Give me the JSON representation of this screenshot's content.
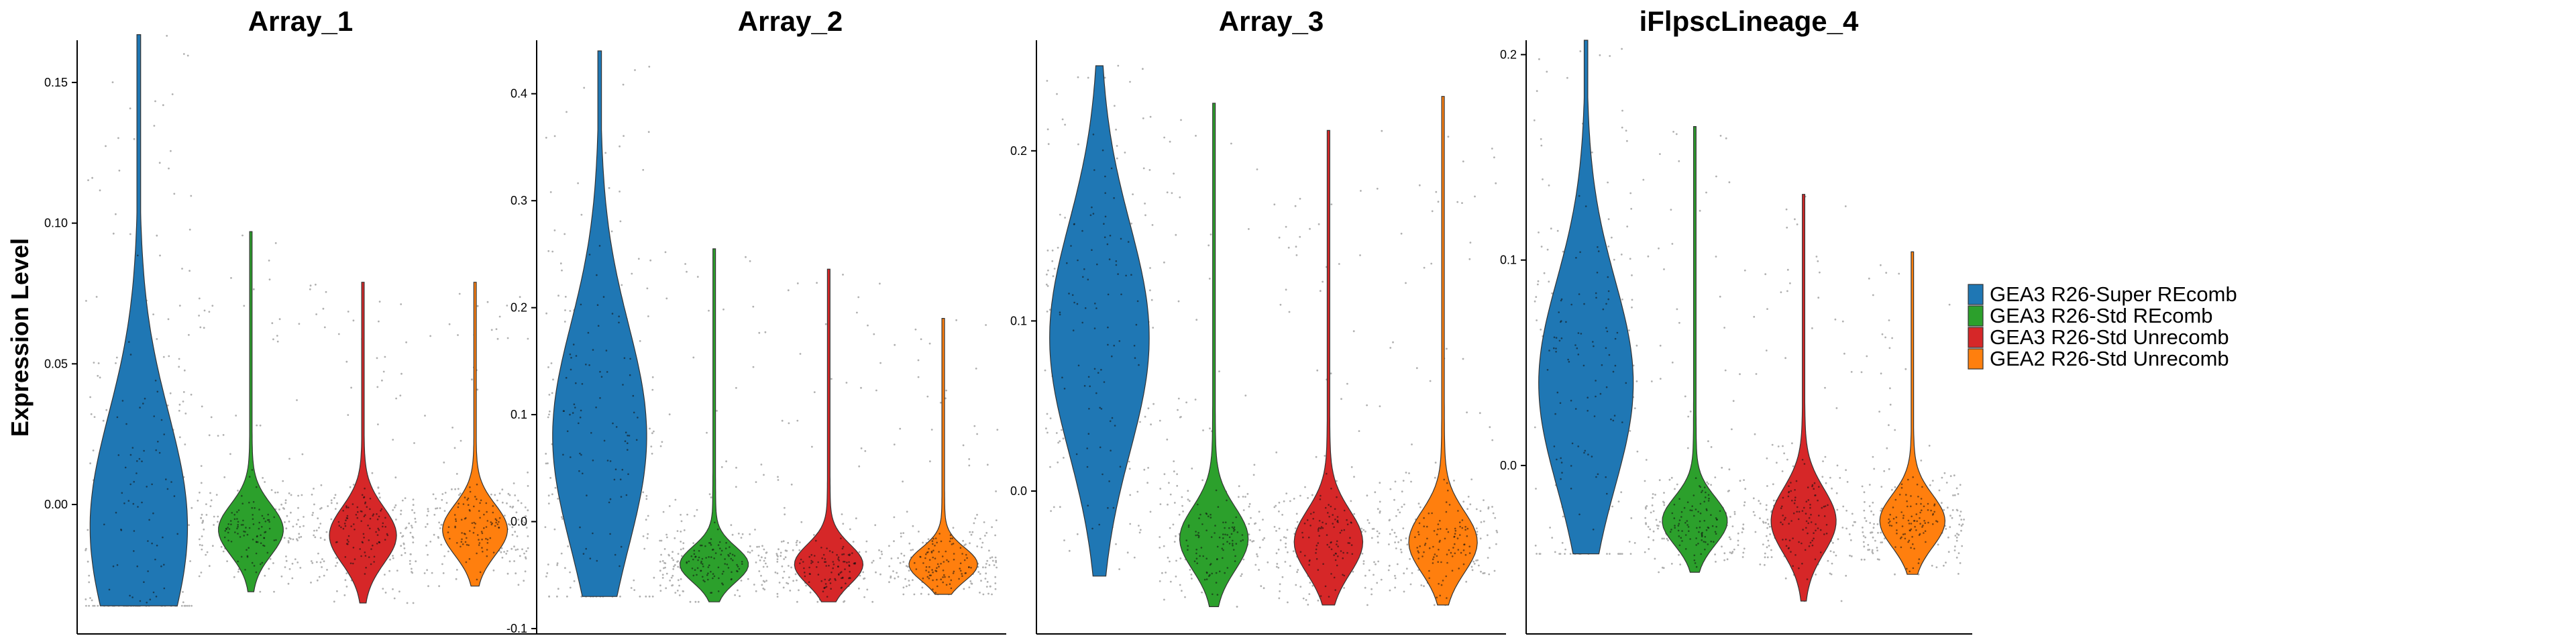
{
  "chart_data": [
    {
      "type": "violin",
      "title": "Array_1",
      "ylabel": "Expression Level",
      "ylim": [
        -0.046,
        0.165
      ],
      "yticks": [
        0.0,
        0.05,
        0.1,
        0.15
      ],
      "ytick_labels": [
        "0.00",
        "0.05",
        "0.10",
        "0.15"
      ],
      "series": [
        {
          "name": "GEA3 R26-Super REcomb",
          "y_min": -0.036,
          "y_max": 0.167,
          "median": -0.008,
          "bulk_low": -0.03,
          "bulk_high": 0.09,
          "peak_width": 0.9,
          "n_points": 240
        },
        {
          "name": "GEA3 R26-Std REcomb",
          "y_min": -0.031,
          "y_max": 0.097,
          "median": -0.009,
          "bulk_low": -0.024,
          "bulk_high": 0.003,
          "peak_width": 0.6,
          "n_points": 200
        },
        {
          "name": "GEA3 R26-Std Unrecomb",
          "y_min": -0.035,
          "y_max": 0.079,
          "median": -0.011,
          "bulk_low": -0.028,
          "bulk_high": 0.002,
          "peak_width": 0.62,
          "n_points": 200
        },
        {
          "name": "GEA2 R26-Std Unrecomb",
          "y_min": -0.029,
          "y_max": 0.079,
          "median": -0.009,
          "bulk_low": -0.024,
          "bulk_high": 0.003,
          "peak_width": 0.6,
          "n_points": 200
        }
      ]
    },
    {
      "type": "violin",
      "title": "Array_2",
      "ylim": [
        -0.105,
        0.45
      ],
      "yticks": [
        -0.1,
        0.0,
        0.1,
        0.2,
        0.3,
        0.4
      ],
      "ytick_labels": [
        "-0.1",
        "0.0",
        "0.1",
        "0.2",
        "0.3",
        "0.4"
      ],
      "series": [
        {
          "name": "GEA3 R26-Super REcomb",
          "y_min": -0.07,
          "y_max": 0.44,
          "median": 0.08,
          "bulk_low": -0.06,
          "bulk_high": 0.25,
          "peak_width": 0.85,
          "n_points": 240
        },
        {
          "name": "GEA3 R26-Std REcomb",
          "y_min": -0.075,
          "y_max": 0.255,
          "median": -0.04,
          "bulk_low": -0.065,
          "bulk_high": -0.015,
          "peak_width": 0.62,
          "n_points": 200
        },
        {
          "name": "GEA3 R26-Std Unrecomb",
          "y_min": -0.075,
          "y_max": 0.236,
          "median": -0.04,
          "bulk_low": -0.068,
          "bulk_high": -0.012,
          "peak_width": 0.62,
          "n_points": 200
        },
        {
          "name": "GEA2 R26-Std Unrecomb",
          "y_min": -0.068,
          "y_max": 0.19,
          "median": -0.04,
          "bulk_low": -0.062,
          "bulk_high": -0.015,
          "peak_width": 0.62,
          "n_points": 200
        }
      ]
    },
    {
      "type": "violin",
      "title": "Array_3",
      "ylim": [
        -0.084,
        0.265
      ],
      "yticks": [
        0.0,
        0.1,
        0.2
      ],
      "ytick_labels": [
        "0.0",
        "0.1",
        "0.2"
      ],
      "series": [
        {
          "name": "GEA3 R26-Super REcomb",
          "y_min": -0.05,
          "y_max": 0.25,
          "median": 0.09,
          "bulk_low": -0.03,
          "bulk_high": 0.17,
          "peak_width": 0.9,
          "n_points": 240
        },
        {
          "name": "GEA3 R26-Std REcomb",
          "y_min": -0.068,
          "y_max": 0.228,
          "median": -0.028,
          "bulk_low": -0.055,
          "bulk_high": 0.0,
          "peak_width": 0.62,
          "n_points": 200
        },
        {
          "name": "GEA3 R26-Std Unrecomb",
          "y_min": -0.067,
          "y_max": 0.212,
          "median": -0.03,
          "bulk_low": -0.058,
          "bulk_high": -0.002,
          "peak_width": 0.62,
          "n_points": 200
        },
        {
          "name": "GEA2 R26-Std Unrecomb",
          "y_min": -0.067,
          "y_max": 0.232,
          "median": -0.03,
          "bulk_low": -0.057,
          "bulk_high": -0.003,
          "peak_width": 0.62,
          "n_points": 200
        }
      ]
    },
    {
      "type": "violin",
      "title": "iFlpscLineage_4",
      "ylim": [
        -0.082,
        0.207
      ],
      "yticks": [
        0.0,
        0.1,
        0.2
      ],
      "ytick_labels": [
        "0.0",
        "0.1",
        "0.2"
      ],
      "series": [
        {
          "name": "GEA3 R26-Super REcomb",
          "y_min": -0.043,
          "y_max": 0.207,
          "median": 0.04,
          "bulk_low": -0.02,
          "bulk_high": 0.13,
          "peak_width": 0.9,
          "n_points": 240
        },
        {
          "name": "GEA3 R26-Std REcomb",
          "y_min": -0.052,
          "y_max": 0.165,
          "median": -0.027,
          "bulk_low": -0.045,
          "bulk_high": -0.01,
          "peak_width": 0.62,
          "n_points": 200
        },
        {
          "name": "GEA3 R26-Std Unrecomb",
          "y_min": -0.066,
          "y_max": 0.132,
          "median": -0.027,
          "bulk_low": -0.052,
          "bulk_high": -0.005,
          "peak_width": 0.62,
          "n_points": 200
        },
        {
          "name": "GEA2 R26-Std Unrecomb",
          "y_min": -0.053,
          "y_max": 0.104,
          "median": -0.027,
          "bulk_low": -0.045,
          "bulk_high": -0.007,
          "peak_width": 0.62,
          "n_points": 200
        }
      ]
    }
  ],
  "legend": {
    "placement": "right",
    "items": [
      {
        "label": "GEA3 R26-Super REcomb",
        "color": "#1f77b4"
      },
      {
        "label": "GEA3 R26-Std REcomb",
        "color": "#2ca02c"
      },
      {
        "label": "GEA3 R26-Std Unrecomb",
        "color": "#d62728"
      },
      {
        "label": "GEA2 R26-Std Unrecomb",
        "color": "#ff7f0e"
      }
    ]
  }
}
